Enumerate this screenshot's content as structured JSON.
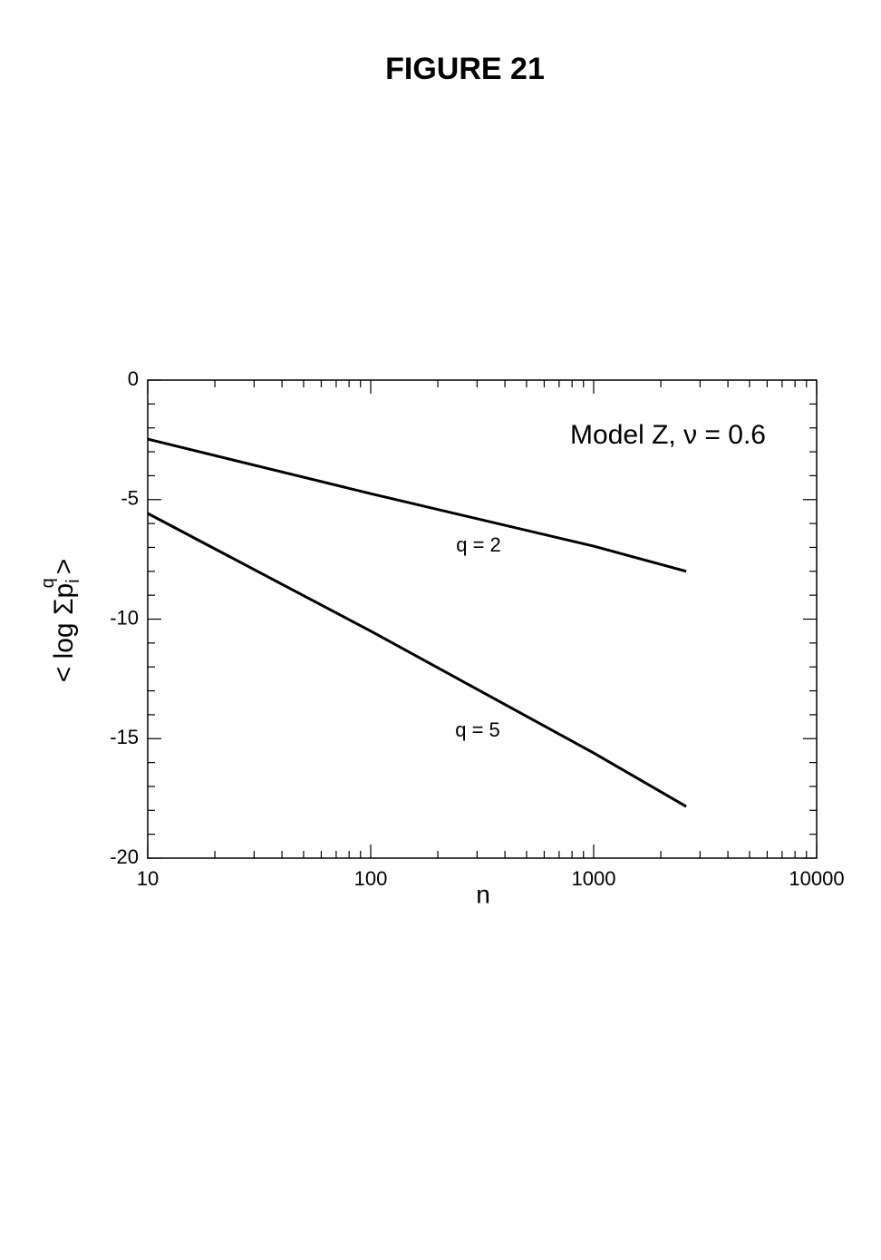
{
  "chart_data": {
    "type": "line",
    "title": "FIGURE 21",
    "annotation": "Model Z, ν = 0.6",
    "x_label": "n",
    "y_label": {
      "pre": "< log Σp",
      "sub": "i",
      "sup": "q",
      "post": ">"
    },
    "x": [
      10,
      100,
      1000,
      2600
    ],
    "xlim": [
      10,
      10000
    ],
    "xticks": [
      10,
      100,
      1000,
      10000
    ],
    "x_log": true,
    "ylim": [
      -20,
      0
    ],
    "yticks": [
      0,
      -5,
      -10,
      -15,
      -20
    ],
    "grid": false,
    "series": [
      {
        "name": "q = 2",
        "color": "#000000",
        "values": [
          -2.47,
          -4.75,
          -6.95,
          -8.0
        ]
      },
      {
        "name": "q = 5",
        "color": "#000000",
        "values": [
          -5.58,
          -10.5,
          -15.6,
          -17.84
        ]
      }
    ]
  }
}
